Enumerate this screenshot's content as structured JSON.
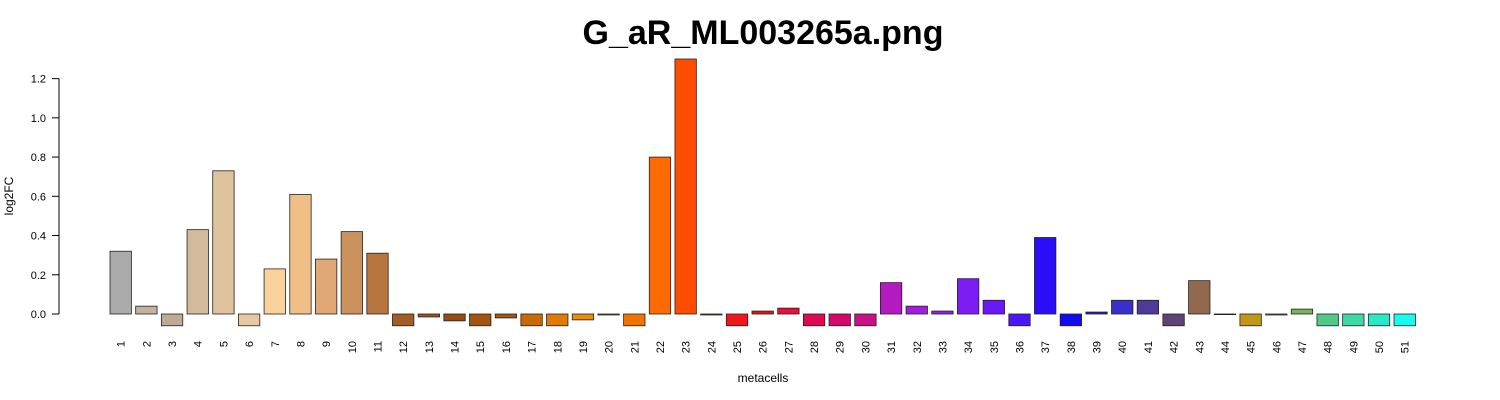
{
  "chart_data": {
    "type": "bar",
    "title": "G_aR_ML003265a.png",
    "xlabel": "metacells",
    "ylabel": "log2FC",
    "ylim": [
      -0.07,
      1.3
    ],
    "yticks": [
      0.0,
      0.2,
      0.4,
      0.6,
      0.8,
      1.0,
      1.2
    ],
    "grid": false,
    "legend": "none",
    "categories": [
      "1",
      "2",
      "3",
      "4",
      "5",
      "6",
      "7",
      "8",
      "9",
      "10",
      "11",
      "12",
      "13",
      "14",
      "15",
      "16",
      "17",
      "18",
      "19",
      "20",
      "21",
      "22",
      "23",
      "24",
      "25",
      "26",
      "27",
      "28",
      "29",
      "30",
      "31",
      "32",
      "33",
      "34",
      "35",
      "36",
      "37",
      "38",
      "39",
      "40",
      "41",
      "42",
      "43",
      "44",
      "45",
      "46",
      "47",
      "48",
      "49",
      "50",
      "51"
    ],
    "values": [
      0.32,
      0.04,
      -0.06,
      0.43,
      0.73,
      -0.06,
      0.23,
      0.61,
      0.28,
      0.42,
      0.31,
      -0.06,
      -0.015,
      -0.035,
      -0.06,
      -0.02,
      -0.06,
      -0.06,
      -0.03,
      -0.005,
      -0.06,
      0.8,
      1.3,
      -0.005,
      -0.06,
      0.015,
      0.03,
      -0.06,
      -0.06,
      -0.06,
      0.16,
      0.04,
      0.015,
      0.18,
      0.07,
      -0.06,
      0.39,
      -0.06,
      0.01,
      0.07,
      0.07,
      -0.06,
      0.17,
      0.0,
      -0.06,
      -0.005,
      0.025,
      -0.06,
      -0.06,
      -0.06,
      -0.06
    ],
    "colors": [
      "#AAAAAA",
      "#C0B29E",
      "#BEAA95",
      "#D4BA9C",
      "#DFC29E",
      "#E8C8A2",
      "#FAD19A",
      "#F0BE87",
      "#E0A874",
      "#CC925E",
      "#B7763F",
      "#A35C28",
      "#9F5318",
      "#954D14",
      "#A35510",
      "#A5561A",
      "#C96A05",
      "#E07A00",
      "#EB8E07",
      "#E68A00",
      "#F27200",
      "#FF6B00",
      "#FF4D00",
      "#FF2A00",
      "#F01818",
      "#EB1215",
      "#E8103A",
      "#E0094F",
      "#D3086A",
      "#C81185",
      "#B31BC0",
      "#9E20DD",
      "#9121EB",
      "#7D1DF3",
      "#6A18F5",
      "#4B15F5",
      "#2A0EF5",
      "#120AF0",
      "#1A1ADD",
      "#3A2FCC",
      "#4F3A97",
      "#5E4474",
      "#92684F",
      "#9A8050",
      "#C39715",
      "#ABA130",
      "#79B45E",
      "#52C98A",
      "#3FD7A5",
      "#2AE8C5",
      "#17FAF0"
    ]
  }
}
